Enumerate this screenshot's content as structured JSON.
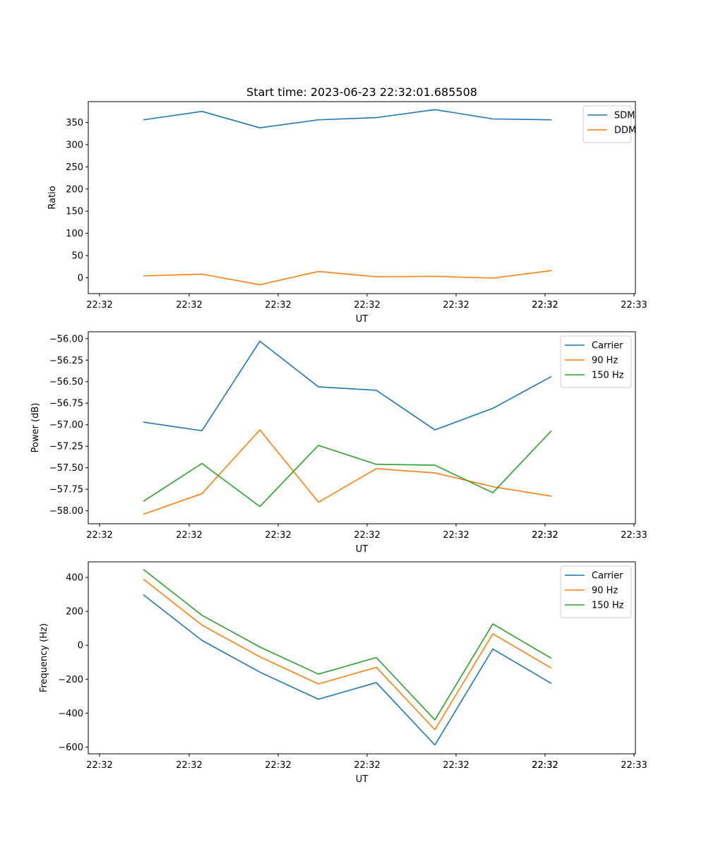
{
  "title": "Start time: 2023-06-23 22:32:01.685508",
  "chart_data": [
    {
      "type": "line",
      "xlabel": "UT",
      "ylabel": "Ratio",
      "x_tick_labels": [
        "22:32",
        "22:32",
        "22:32",
        "22:32",
        "22:32",
        "22:32",
        "22:32",
        "22:33"
      ],
      "ylim": [
        -36,
        397
      ],
      "yticks": [
        0,
        50,
        100,
        150,
        200,
        250,
        300,
        350
      ],
      "y_tick_labels": [
        "0",
        "50",
        "100",
        "150",
        "200",
        "250",
        "300",
        "350"
      ],
      "legend_position": "top-right",
      "series": [
        {
          "name": "SDM",
          "color": "#1f77b4",
          "values": [
            356,
            375,
            338,
            356,
            361,
            379,
            358,
            356
          ]
        },
        {
          "name": "DDM",
          "color": "#ff7f0e",
          "values": [
            4,
            8,
            -16,
            14,
            2,
            3,
            -1,
            16
          ]
        }
      ]
    },
    {
      "type": "line",
      "xlabel": "UT",
      "ylabel": "Power (dB)",
      "x_tick_labels": [
        "22:32",
        "22:32",
        "22:32",
        "22:32",
        "22:32",
        "22:32",
        "22:32",
        "22:33"
      ],
      "ylim": [
        -58.15,
        -55.92
      ],
      "yticks": [
        -58.0,
        -57.75,
        -57.5,
        -57.25,
        -57.0,
        -56.75,
        -56.5,
        -56.25,
        -56.0
      ],
      "y_tick_labels": [
        "−58.00",
        "−57.75",
        "−57.50",
        "−57.25",
        "−57.00",
        "−56.75",
        "−56.50",
        "−56.25",
        "−56.00"
      ],
      "legend_position": "top-right",
      "series": [
        {
          "name": "Carrier",
          "color": "#1f77b4",
          "values": [
            -56.97,
            -57.07,
            -56.03,
            -56.56,
            -56.6,
            -57.06,
            -56.81,
            -56.44
          ]
        },
        {
          "name": "90 Hz",
          "color": "#ff7f0e",
          "values": [
            -58.04,
            -57.8,
            -57.06,
            -57.9,
            -57.51,
            -57.56,
            -57.72,
            -57.83
          ]
        },
        {
          "name": "150 Hz",
          "color": "#2ca02c",
          "values": [
            -57.89,
            -57.45,
            -57.95,
            -57.24,
            -57.46,
            -57.47,
            -57.79,
            -57.07
          ]
        }
      ]
    },
    {
      "type": "line",
      "xlabel": "UT",
      "ylabel": "Frequency (Hz)",
      "x_tick_labels": [
        "22:32",
        "22:32",
        "22:32",
        "22:32",
        "22:32",
        "22:32",
        "22:32",
        "22:33"
      ],
      "ylim": [
        -640,
        492
      ],
      "yticks": [
        -600,
        -400,
        -200,
        0,
        200,
        400
      ],
      "y_tick_labels": [
        "−600",
        "−400",
        "−200",
        "0",
        "200",
        "400"
      ],
      "legend_position": "top-right",
      "series": [
        {
          "name": "Carrier",
          "color": "#1f77b4",
          "values": [
            298,
            29,
            -158,
            -318,
            -220,
            -588,
            -22,
            -225
          ]
        },
        {
          "name": "90 Hz",
          "color": "#ff7f0e",
          "values": [
            390,
            119,
            -68,
            -228,
            -130,
            -498,
            68,
            -135
          ]
        },
        {
          "name": "150 Hz",
          "color": "#2ca02c",
          "values": [
            448,
            177,
            -10,
            -170,
            -72,
            -440,
            126,
            -77
          ]
        }
      ]
    }
  ]
}
